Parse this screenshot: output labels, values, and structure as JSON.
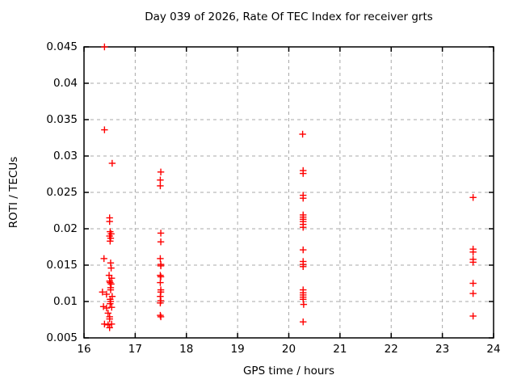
{
  "colors": {
    "marker": "#ff0000",
    "grid": "#a8a8a8",
    "axis": "#000000",
    "background": "#ffffff",
    "text": "#000000"
  },
  "chart_data": {
    "type": "scatter",
    "title": "Day 039 of 2026, Rate Of TEC Index for receiver grts",
    "xlabel": "GPS time / hours",
    "ylabel": "ROTI / TECUs",
    "xlim": [
      16,
      24
    ],
    "ylim": [
      0.005,
      0.045
    ],
    "x_ticks": [
      16,
      17,
      18,
      19,
      20,
      21,
      22,
      23,
      24
    ],
    "x_tick_labels": [
      "16",
      "17",
      "18",
      "19",
      "20",
      "21",
      "22",
      "23",
      "24"
    ],
    "y_ticks": [
      0.005,
      0.01,
      0.015,
      0.02,
      0.025,
      0.03,
      0.035,
      0.04,
      0.045
    ],
    "y_tick_labels": [
      "0.005",
      "0.01",
      "0.015",
      "0.02",
      "0.025",
      "0.03",
      "0.035",
      "0.04",
      "0.045"
    ],
    "grid": true,
    "grid_style": "dashed",
    "legend": "none",
    "marker": "plus",
    "series": [
      {
        "name": "ROTI",
        "color": "#ff0000",
        "points": [
          [
            16.4,
            0.045
          ],
          [
            16.4,
            0.0336
          ],
          [
            16.55,
            0.029
          ],
          [
            16.5,
            0.0215
          ],
          [
            16.5,
            0.021
          ],
          [
            16.51,
            0.0196
          ],
          [
            16.53,
            0.0193
          ],
          [
            16.5,
            0.019
          ],
          [
            16.52,
            0.0187
          ],
          [
            16.51,
            0.0183
          ],
          [
            16.39,
            0.0159
          ],
          [
            16.52,
            0.0153
          ],
          [
            16.53,
            0.0146
          ],
          [
            16.49,
            0.0136
          ],
          [
            16.54,
            0.0132
          ],
          [
            16.5,
            0.0128
          ],
          [
            16.51,
            0.0126
          ],
          [
            16.53,
            0.0124
          ],
          [
            16.52,
            0.0119
          ],
          [
            16.52,
            0.0116
          ],
          [
            16.36,
            0.0113
          ],
          [
            16.44,
            0.011
          ],
          [
            16.55,
            0.0107
          ],
          [
            16.51,
            0.0103
          ],
          [
            16.52,
            0.01
          ],
          [
            16.51,
            0.0097
          ],
          [
            16.38,
            0.0093
          ],
          [
            16.54,
            0.0092
          ],
          [
            16.44,
            0.0091
          ],
          [
            16.47,
            0.0084
          ],
          [
            16.5,
            0.0079
          ],
          [
            16.5,
            0.0076
          ],
          [
            16.4,
            0.0069
          ],
          [
            16.54,
            0.0069
          ],
          [
            16.47,
            0.0068
          ],
          [
            16.5,
            0.0064
          ],
          [
            17.5,
            0.0278
          ],
          [
            17.49,
            0.0267
          ],
          [
            17.49,
            0.0259
          ],
          [
            17.5,
            0.0194
          ],
          [
            17.5,
            0.0182
          ],
          [
            17.49,
            0.0159
          ],
          [
            17.5,
            0.0151
          ],
          [
            17.5,
            0.0149
          ],
          [
            17.49,
            0.0136
          ],
          [
            17.5,
            0.0134
          ],
          [
            17.49,
            0.0126
          ],
          [
            17.5,
            0.0116
          ],
          [
            17.5,
            0.0113
          ],
          [
            17.49,
            0.0107
          ],
          [
            17.5,
            0.0101
          ],
          [
            17.49,
            0.0098
          ],
          [
            17.49,
            0.0081
          ],
          [
            17.5,
            0.0079
          ],
          [
            20.27,
            0.033
          ],
          [
            20.28,
            0.028
          ],
          [
            20.28,
            0.0276
          ],
          [
            20.28,
            0.0246
          ],
          [
            20.28,
            0.0242
          ],
          [
            20.28,
            0.0219
          ],
          [
            20.28,
            0.0216
          ],
          [
            20.28,
            0.0213
          ],
          [
            20.28,
            0.021
          ],
          [
            20.28,
            0.0206
          ],
          [
            20.28,
            0.0202
          ],
          [
            20.28,
            0.0171
          ],
          [
            20.28,
            0.0155
          ],
          [
            20.28,
            0.0151
          ],
          [
            20.28,
            0.0148
          ],
          [
            20.28,
            0.0116
          ],
          [
            20.28,
            0.0112
          ],
          [
            20.28,
            0.0109
          ],
          [
            20.28,
            0.0106
          ],
          [
            20.28,
            0.0103
          ],
          [
            20.29,
            0.0096
          ],
          [
            20.28,
            0.0072
          ],
          [
            23.6,
            0.0243
          ],
          [
            23.6,
            0.0172
          ],
          [
            23.6,
            0.0168
          ],
          [
            23.6,
            0.0158
          ],
          [
            23.6,
            0.0154
          ],
          [
            23.6,
            0.0125
          ],
          [
            23.6,
            0.0111
          ],
          [
            23.6,
            0.008
          ]
        ]
      }
    ]
  }
}
